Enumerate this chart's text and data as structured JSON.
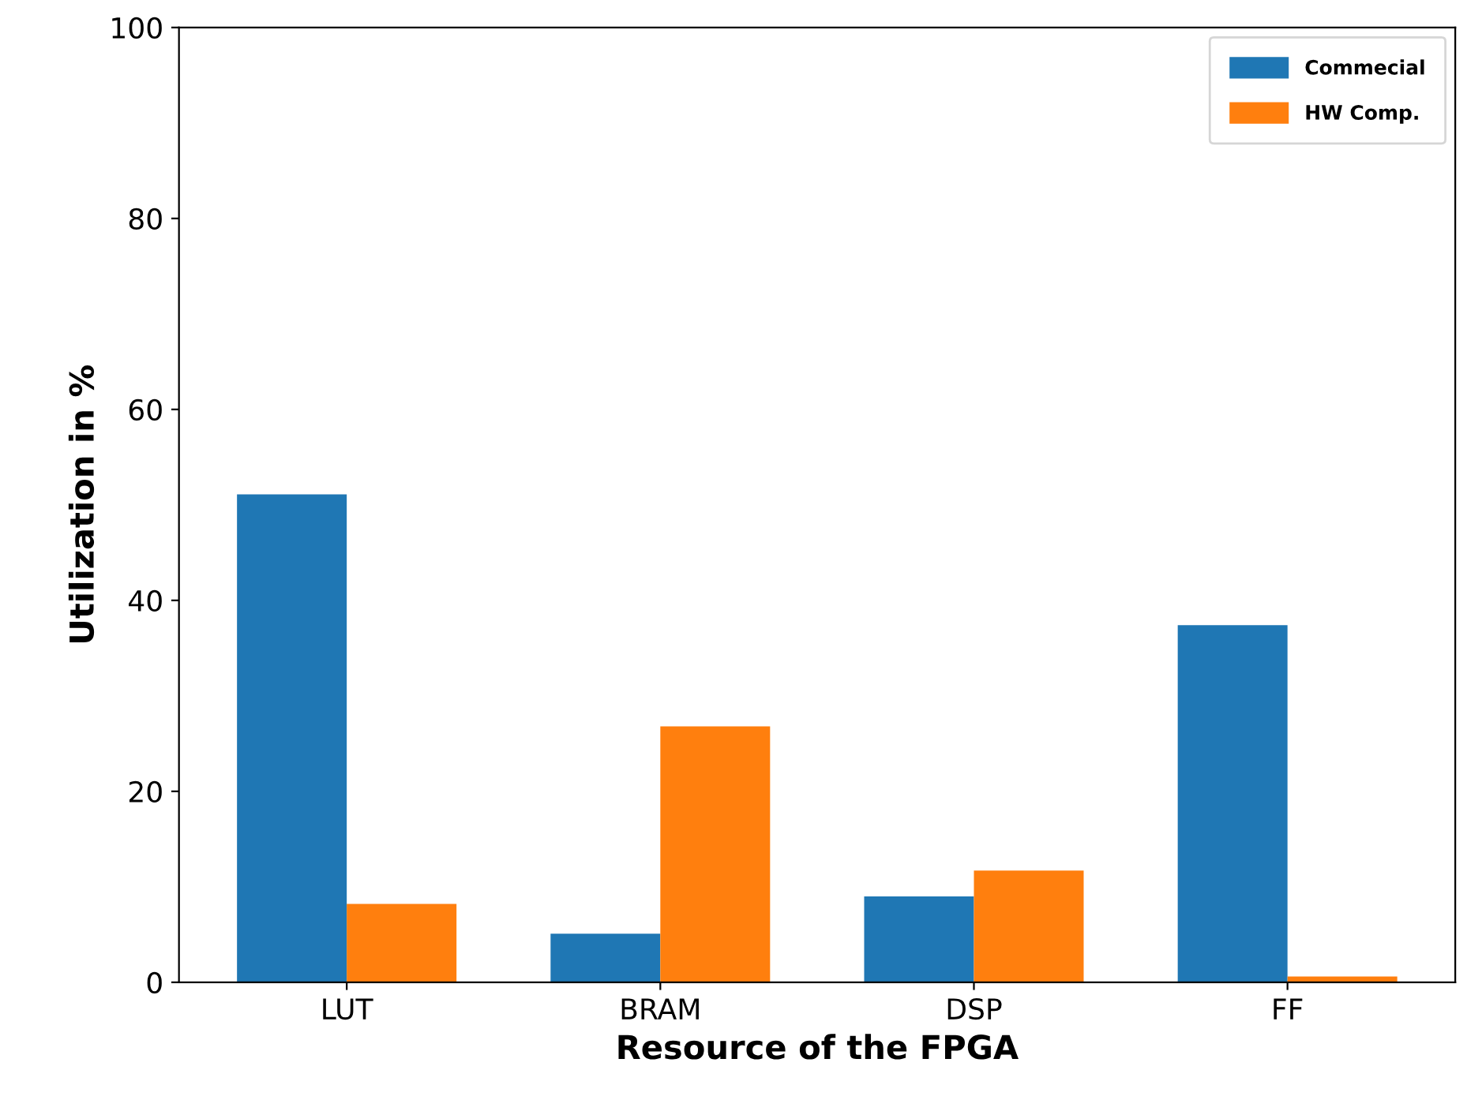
{
  "chart_data": {
    "type": "bar",
    "xlabel": "Resource of the FPGA",
    "ylabel": "Utilization in %",
    "categories": [
      "LUT",
      "BRAM",
      "DSP",
      "FF"
    ],
    "series": [
      {
        "name": "Commecial",
        "color": "#1f77b4",
        "values": [
          51.1,
          5.1,
          9.0,
          37.4
        ]
      },
      {
        "name": "HW Comp.",
        "color": "#ff7f0e",
        "values": [
          8.2,
          26.8,
          11.7,
          0.6
        ]
      }
    ],
    "ylim": [
      0,
      100
    ],
    "yticks": [
      0,
      20,
      40,
      60,
      80,
      100
    ],
    "legend": "top right",
    "grid": false
  }
}
